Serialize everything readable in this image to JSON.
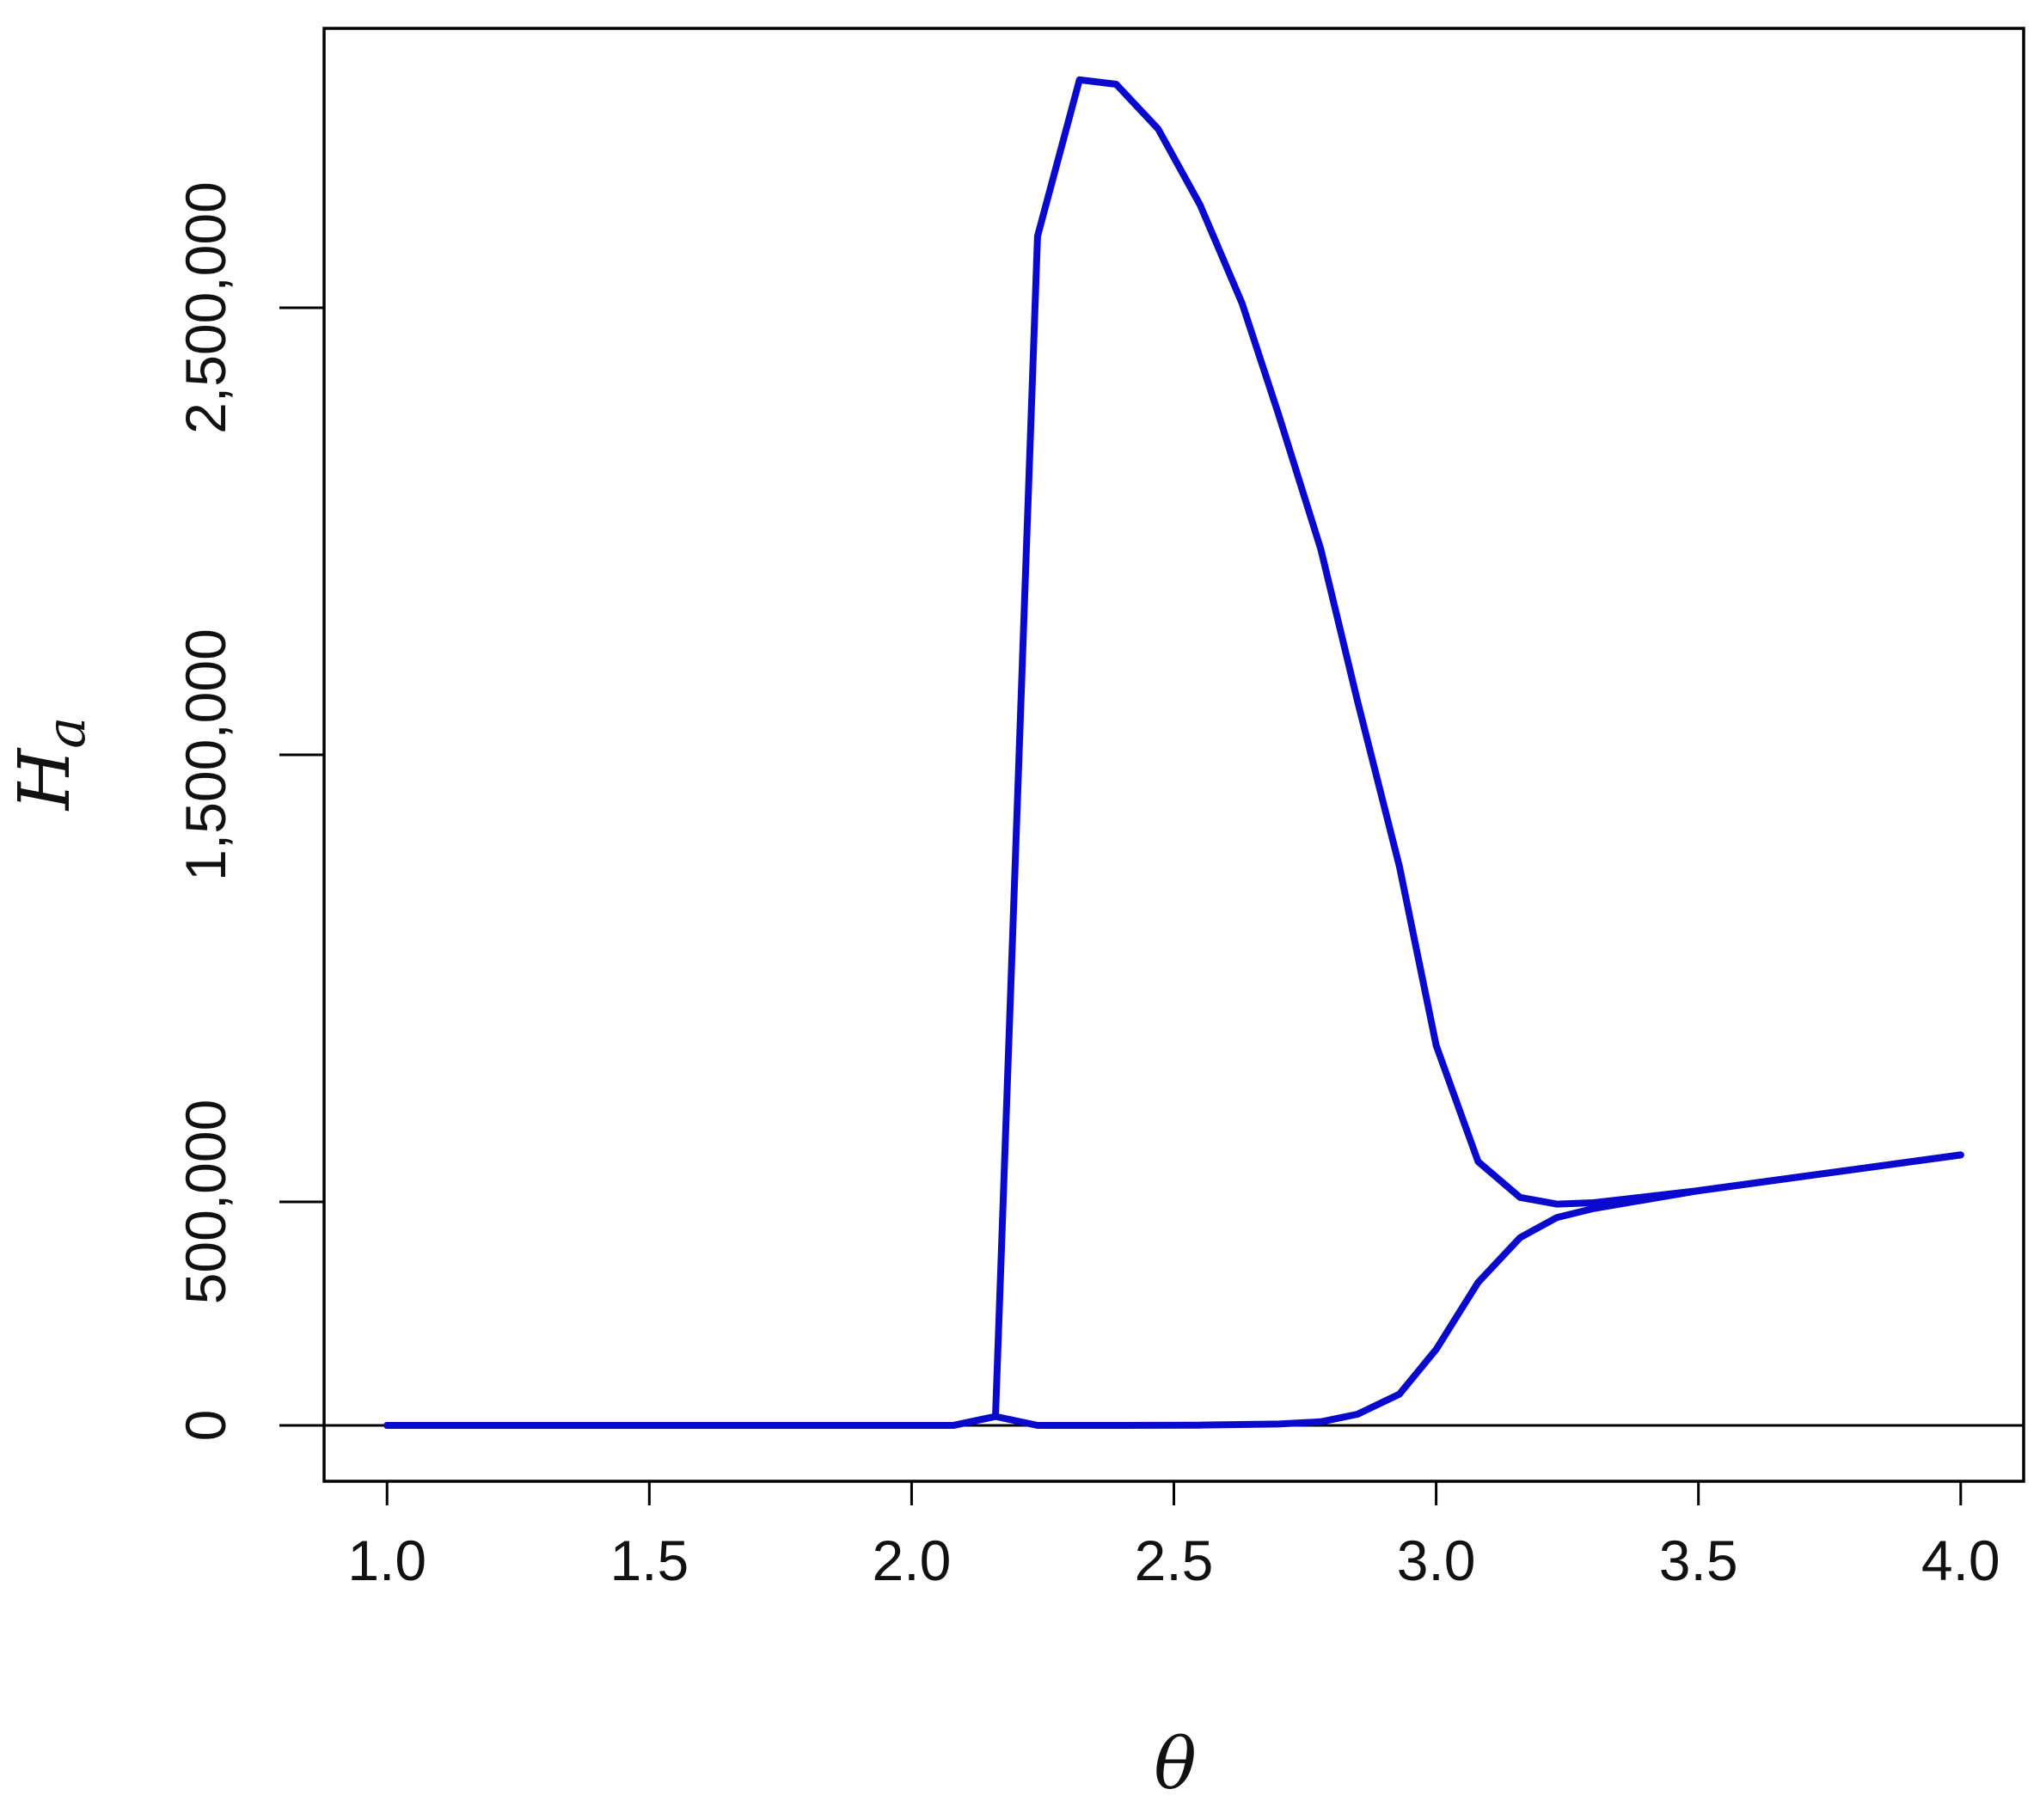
{
  "chart_data": {
    "type": "line",
    "xlabel": "θ",
    "ylabel": {
      "main": "H",
      "subscript": "a"
    },
    "xlim": [
      0.88,
      4.12
    ],
    "ylim": [
      -125000,
      3125000
    ],
    "x_ticks": [
      1.0,
      1.5,
      2.0,
      2.5,
      3.0,
      3.5,
      4.0
    ],
    "x_tick_labels": [
      "1.0",
      "1.5",
      "2.0",
      "2.5",
      "3.0",
      "3.5",
      "4.0"
    ],
    "y_ticks": [
      0,
      500000,
      1500000,
      2500000
    ],
    "y_tick_labels": [
      "0",
      "500,000",
      "1,500,000",
      "2,500,000"
    ],
    "reference_line_y": 0,
    "grid": false,
    "line_color": "#0a0acf",
    "series": [
      {
        "x": [
          1.0,
          1.5,
          2.0,
          2.08,
          2.16,
          2.24,
          2.32,
          2.39,
          2.47,
          2.55,
          2.63,
          2.7,
          2.78,
          2.85,
          2.93,
          3.0,
          3.08,
          3.16,
          3.23,
          3.3,
          3.5,
          3.75,
          4.0
        ],
        "y": [
          0,
          0,
          0,
          0,
          20000,
          2660000,
          3010000,
          3000000,
          2900000,
          2730000,
          2510000,
          2260000,
          1960000,
          1620000,
          1250000,
          850000,
          590000,
          510000,
          495000,
          498000,
          525000,
          565000,
          605000
        ]
      },
      {
        "x": [
          1.0,
          1.5,
          2.0,
          2.08,
          2.16,
          2.24,
          2.4,
          2.55,
          2.7,
          2.78,
          2.85,
          2.93,
          3.0,
          3.08,
          3.16,
          3.23,
          3.3,
          3.5,
          3.75,
          4.0
        ],
        "y": [
          0,
          0,
          0,
          0,
          20000,
          0,
          0,
          500,
          3000,
          8000,
          25000,
          70000,
          170000,
          320000,
          420000,
          465000,
          485000,
          525000,
          565000,
          605000
        ]
      }
    ]
  }
}
